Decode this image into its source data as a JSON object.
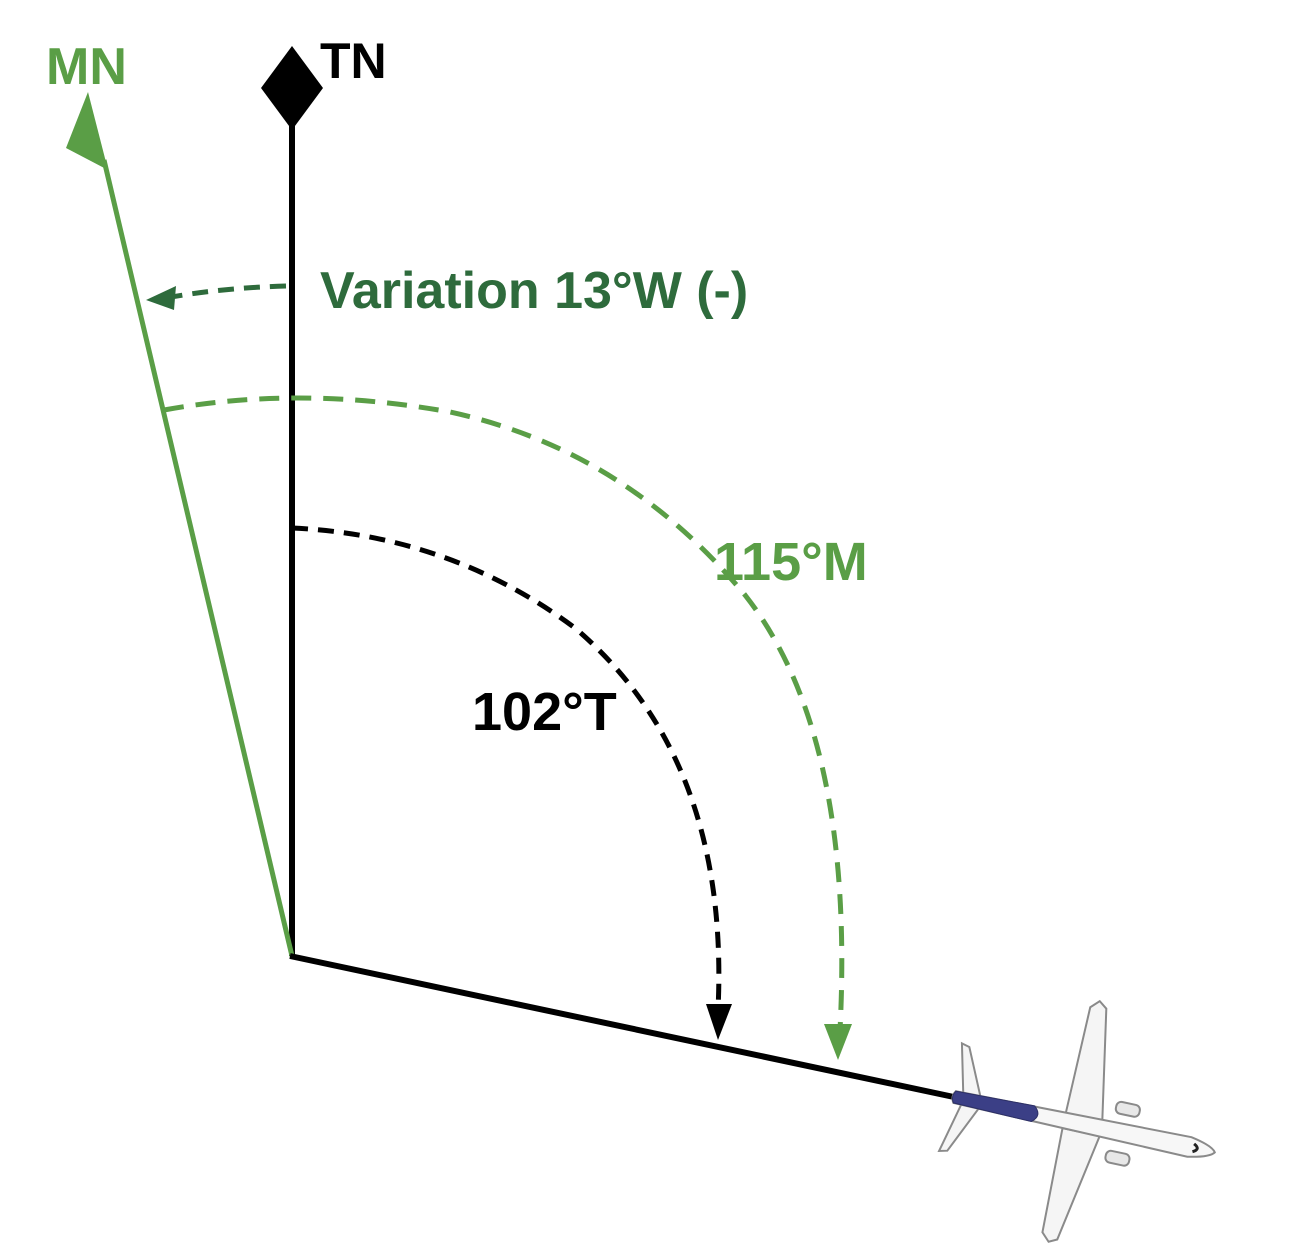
{
  "labels": {
    "magnetic_north": "MN",
    "true_north": "TN",
    "variation": "Variation 13°W (-)",
    "magnetic_heading": "115°M",
    "true_heading": "102°T"
  },
  "angles": {
    "variation_deg": 13,
    "variation_direction": "W",
    "true_heading_deg": 102,
    "magnetic_heading_deg": 115
  },
  "colors": {
    "true_north": "#000000",
    "magnetic_north": "#5a9e46",
    "variation_text": "#2e6b3c",
    "background": "#ffffff"
  },
  "icons": {
    "true_north_marker": "diamond",
    "aircraft": "airplane-icon"
  }
}
